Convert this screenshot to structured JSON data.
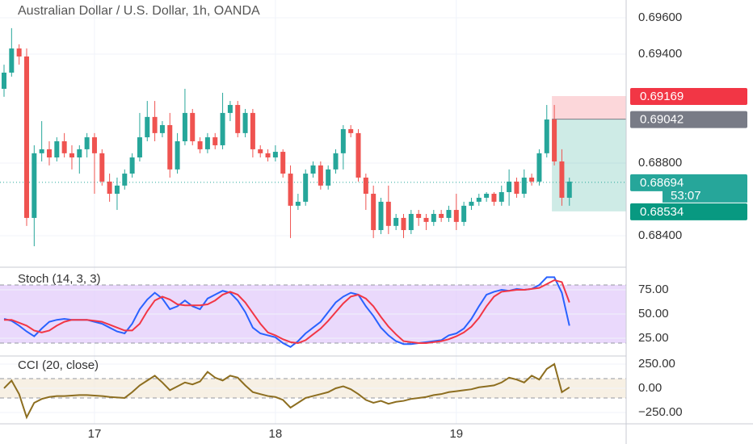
{
  "chart_data": [
    {
      "type": "candlestick",
      "title": "Australian Dollar / U.S. Dollar, 1h, OANDA",
      "x": [
        null,
        null,
        null,
        null,
        null,
        null,
        null,
        null,
        null,
        null,
        null,
        null,
        "17",
        null,
        null,
        null,
        null,
        null,
        null,
        null,
        null,
        null,
        null,
        null,
        null,
        null,
        null,
        null,
        null,
        null,
        null,
        null,
        null,
        null,
        null,
        null,
        "18",
        null,
        null,
        null,
        null,
        null,
        null,
        null,
        null,
        null,
        null,
        null,
        null,
        null,
        null,
        null,
        null,
        null,
        null,
        null,
        null,
        null,
        null,
        null,
        "19",
        null,
        null,
        null,
        null,
        null,
        null,
        null,
        null,
        null,
        null,
        null,
        null,
        null,
        null,
        null
      ],
      "open": [
        0.69209,
        0.69298,
        0.69431,
        0.69387,
        0.68498,
        0.68854,
        0.68876,
        0.68831,
        0.6892,
        0.68854,
        0.68831,
        0.68876,
        0.68942,
        0.68854,
        0.68698,
        0.68631,
        0.68676,
        0.68742,
        0.68831,
        0.68942,
        0.69054,
        0.68965,
        0.69009,
        0.68765,
        0.6892,
        0.69076,
        0.6892,
        0.68876,
        0.68942,
        0.68898,
        0.69076,
        0.6912,
        0.68965,
        0.69076,
        0.68876,
        0.68854,
        0.68831,
        0.68862,
        0.68742,
        0.68565,
        0.68587,
        0.68742,
        0.68787,
        0.68676,
        0.68765,
        0.68854,
        0.68987,
        0.68965,
        0.6872,
        0.68631,
        0.68431,
        0.68587,
        0.68454,
        0.68498,
        0.68431,
        0.6852,
        0.68498,
        0.68476,
        0.6852,
        0.68498,
        0.68542,
        0.68476,
        0.68565,
        0.68587,
        0.68609,
        0.68631,
        0.68587,
        0.6864,
        0.68698,
        0.68631,
        0.6872,
        0.68698,
        0.68854,
        0.6904,
        0.68809,
        0.68609
      ],
      "high": [
        0.69342,
        0.69543,
        0.69454,
        0.69431,
        0.68898,
        0.69031,
        0.6892,
        0.68942,
        0.68965,
        0.68898,
        0.68898,
        0.68965,
        0.68965,
        0.68876,
        0.68742,
        0.6872,
        0.68765,
        0.68854,
        0.69076,
        0.69142,
        0.69142,
        0.69031,
        0.69076,
        0.68965,
        0.69209,
        0.69098,
        0.68942,
        0.68965,
        0.68965,
        0.69187,
        0.69142,
        0.69142,
        0.69098,
        0.69098,
        0.68898,
        0.68876,
        0.68898,
        0.68876,
        0.68787,
        0.68631,
        0.68765,
        0.68809,
        0.68809,
        0.68787,
        0.68876,
        0.69009,
        0.69009,
        0.68987,
        0.68742,
        0.68676,
        0.68609,
        0.68676,
        0.6852,
        0.6852,
        0.68542,
        0.68542,
        0.6852,
        0.68542,
        0.68542,
        0.68565,
        0.68631,
        0.68587,
        0.68609,
        0.68631,
        0.6864,
        0.6864,
        0.68676,
        0.68765,
        0.6872,
        0.68765,
        0.68742,
        0.68876,
        0.6912,
        0.6912,
        0.68876,
        0.6872
      ],
      "low": [
        0.69165,
        0.69276,
        0.69342,
        0.68454,
        0.68342,
        0.68809,
        0.68787,
        0.68809,
        0.68831,
        0.68765,
        0.68742,
        0.68831,
        0.68631,
        0.68676,
        0.68587,
        0.68542,
        0.68654,
        0.6872,
        0.68809,
        0.6892,
        0.6892,
        0.68942,
        0.6872,
        0.68742,
        0.68898,
        0.68898,
        0.68854,
        0.68854,
        0.68876,
        0.68876,
        0.69031,
        0.68942,
        0.68942,
        0.68831,
        0.68831,
        0.68809,
        0.68809,
        0.6872,
        0.68387,
        0.68542,
        0.68565,
        0.6872,
        0.68654,
        0.68654,
        0.68742,
        0.68765,
        0.68942,
        0.68698,
        0.68542,
        0.68387,
        0.68409,
        0.68409,
        0.68431,
        0.68387,
        0.68409,
        0.68454,
        0.68431,
        0.68454,
        0.68476,
        0.68476,
        0.68431,
        0.68454,
        0.68542,
        0.68565,
        0.68587,
        0.68565,
        0.68565,
        0.68565,
        0.68609,
        0.68609,
        0.68676,
        0.68676,
        0.68831,
        0.68787,
        0.68565,
        0.68565
      ],
      "close": [
        0.69298,
        0.69431,
        0.69387,
        0.68498,
        0.68854,
        0.68876,
        0.68831,
        0.6892,
        0.68854,
        0.68831,
        0.68876,
        0.68942,
        0.68854,
        0.68698,
        0.68631,
        0.68676,
        0.68742,
        0.68831,
        0.68942,
        0.69054,
        0.68965,
        0.69009,
        0.68765,
        0.6892,
        0.69076,
        0.6892,
        0.68876,
        0.68942,
        0.68898,
        0.69076,
        0.6912,
        0.68965,
        0.69076,
        0.68876,
        0.68854,
        0.68831,
        0.68862,
        0.68742,
        0.68565,
        0.68587,
        0.68742,
        0.68787,
        0.68676,
        0.68765,
        0.68854,
        0.68987,
        0.68965,
        0.6872,
        0.68631,
        0.68431,
        0.68587,
        0.68454,
        0.68498,
        0.68431,
        0.6852,
        0.68498,
        0.68476,
        0.6852,
        0.68498,
        0.68542,
        0.68476,
        0.68565,
        0.68587,
        0.68609,
        0.68631,
        0.68587,
        0.6864,
        0.68698,
        0.68631,
        0.6872,
        0.68698,
        0.68854,
        0.6904,
        0.68809,
        0.68609,
        0.68698
      ],
      "up_color": "#26a69a",
      "down_color": "#ef5350",
      "ylim": [
        0.68231,
        0.69698
      ],
      "yticks": [
        {
          "value": 0.696,
          "label": "0.69600"
        },
        {
          "value": 0.694,
          "label": "0.69400"
        },
        {
          "value": 0.688,
          "label": "0.68800"
        },
        {
          "value": 0.684,
          "label": "0.68400"
        }
      ],
      "grid": true,
      "stop": 0.69169,
      "stop_color": "#f23645",
      "entry": 0.69042,
      "entry_color": "#787b86",
      "target": 0.68534,
      "target_color": "#089981",
      "last_price": 0.68694,
      "last_color": "#26a69a",
      "countdown": "53:07"
    },
    {
      "type": "line",
      "title": "Stoch (14, 3, 3)",
      "ylim": [
        7.5,
        96.7
      ],
      "yticks": [
        {
          "value": 75,
          "label": "75.00"
        },
        {
          "value": 50,
          "label": "50.00"
        },
        {
          "value": 25,
          "label": "25.00"
        }
      ],
      "band": [
        20,
        80
      ],
      "band_color": "#e1c9fb",
      "series": [
        {
          "color": "#2962ff",
          "values": [
            45,
            43,
            38,
            32,
            27,
            35,
            42,
            44,
            45,
            44,
            44,
            44,
            42,
            40,
            36,
            32,
            30,
            40,
            55,
            65,
            72,
            66,
            55,
            58,
            64,
            58,
            55,
            66,
            70,
            74,
            72,
            64,
            52,
            36,
            30,
            28,
            26,
            20,
            16,
            22,
            30,
            36,
            42,
            52,
            62,
            68,
            72,
            70,
            58,
            48,
            36,
            28,
            22,
            19,
            19,
            20,
            21,
            22,
            23,
            28,
            30,
            35,
            45,
            58,
            70,
            73,
            75,
            74,
            76,
            75,
            76,
            80,
            88,
            88,
            72,
            38
          ]
        },
        {
          "color": "#f23645",
          "values": [
            44,
            44,
            41,
            38,
            33,
            31,
            33,
            38,
            42,
            44,
            44,
            44,
            43,
            42,
            39,
            36,
            33,
            33,
            40,
            53,
            64,
            68,
            65,
            60,
            59,
            59,
            59,
            60,
            64,
            70,
            73,
            70,
            62,
            51,
            40,
            31,
            28,
            24,
            21,
            20,
            23,
            29,
            35,
            43,
            52,
            61,
            68,
            70,
            66,
            58,
            47,
            37,
            29,
            22,
            21,
            20,
            20,
            21,
            22,
            24,
            27,
            31,
            37,
            46,
            58,
            68,
            73,
            74,
            75,
            75,
            76,
            77,
            81,
            85,
            83,
            62
          ]
        }
      ]
    },
    {
      "type": "line",
      "title": "CCI (20, close)",
      "ylim": [
        -367,
        325
      ],
      "yticks": [
        {
          "value": 250,
          "label": "250.00"
        },
        {
          "value": 0,
          "label": "0.00"
        },
        {
          "value": -250,
          "label": "−250.00"
        }
      ],
      "band": [
        -100,
        100
      ],
      "band_color": "#f4ead8",
      "series": [
        {
          "color": "#8d6e20",
          "values": [
            0,
            80,
            -60,
            -300,
            -150,
            -110,
            -90,
            -80,
            -80,
            -75,
            -70,
            -70,
            -75,
            -80,
            -90,
            -95,
            -100,
            -40,
            30,
            80,
            130,
            60,
            -20,
            20,
            60,
            40,
            70,
            170,
            110,
            80,
            130,
            110,
            30,
            -40,
            -60,
            -80,
            -90,
            -120,
            -200,
            -150,
            -100,
            -80,
            -60,
            -40,
            0,
            20,
            -10,
            -60,
            -120,
            -150,
            -130,
            -160,
            -140,
            -130,
            -110,
            -100,
            -90,
            -70,
            -60,
            -40,
            -30,
            -20,
            -10,
            10,
            20,
            30,
            60,
            110,
            90,
            60,
            130,
            90,
            200,
            250,
            -40,
            10
          ]
        }
      ]
    }
  ]
}
